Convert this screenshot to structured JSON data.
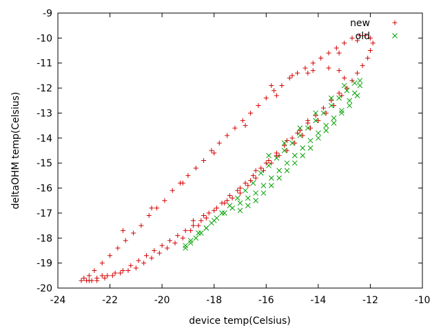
{
  "chart_data": {
    "type": "scatter",
    "title": "",
    "xlabel": "device temp(Celsius)",
    "ylabel": "deltaOHM temp(Celsius)",
    "xlim": [
      -24,
      -10
    ],
    "ylim": [
      -20,
      -9
    ],
    "x_ticks": [
      -24,
      -22,
      -20,
      -18,
      -16,
      -14,
      -12,
      -10
    ],
    "y_ticks": [
      -9,
      -10,
      -11,
      -12,
      -13,
      -14,
      -15,
      -16,
      -17,
      -18,
      -19,
      -20
    ],
    "grid": false,
    "legend_position": "top-right",
    "series": [
      {
        "name": "new",
        "marker": "plus",
        "color": "#d40000",
        "points": [
          [
            -23.1,
            -19.7
          ],
          [
            -22.9,
            -19.7
          ],
          [
            -22.7,
            -19.7
          ],
          [
            -22.5,
            -19.6
          ],
          [
            -22.3,
            -19.5
          ],
          [
            -22.1,
            -19.5
          ],
          [
            -21.8,
            -19.4
          ],
          [
            -21.5,
            -19.3
          ],
          [
            -21.2,
            -19.1
          ],
          [
            -20.9,
            -18.9
          ],
          [
            -20.6,
            -18.7
          ],
          [
            -20.3,
            -18.5
          ],
          [
            -20.0,
            -18.3
          ],
          [
            -19.7,
            -18.1
          ],
          [
            -19.4,
            -17.9
          ],
          [
            -19.1,
            -17.7
          ],
          [
            -18.8,
            -17.5
          ],
          [
            -18.5,
            -17.3
          ],
          [
            -18.2,
            -17.0
          ],
          [
            -17.9,
            -16.8
          ],
          [
            -17.6,
            -16.6
          ],
          [
            -17.3,
            -16.4
          ],
          [
            -17.0,
            -16.2
          ],
          [
            -16.7,
            -15.9
          ],
          [
            -16.4,
            -15.6
          ],
          [
            -16.1,
            -15.3
          ],
          [
            -15.8,
            -15.0
          ],
          [
            -15.5,
            -14.7
          ],
          [
            -15.2,
            -14.5
          ],
          [
            -14.9,
            -14.2
          ],
          [
            -14.6,
            -13.9
          ],
          [
            -14.3,
            -13.6
          ],
          [
            -14.0,
            -13.3
          ],
          [
            -13.7,
            -13.0
          ],
          [
            -13.4,
            -12.7
          ],
          [
            -13.1,
            -12.3
          ],
          [
            -12.9,
            -12.0
          ],
          [
            -12.7,
            -11.7
          ],
          [
            -12.5,
            -11.4
          ],
          [
            -12.3,
            -11.1
          ],
          [
            -12.1,
            -10.8
          ],
          [
            -12.0,
            -10.5
          ],
          [
            -11.9,
            -10.2
          ],
          [
            -12.0,
            -10.0
          ],
          [
            -12.2,
            -9.9
          ],
          [
            -12.4,
            -9.9
          ],
          [
            -12.7,
            -10.0
          ],
          [
            -13.0,
            -10.2
          ],
          [
            -13.3,
            -10.4
          ],
          [
            -13.6,
            -10.6
          ],
          [
            -13.9,
            -10.8
          ],
          [
            -14.2,
            -11.0
          ],
          [
            -14.5,
            -11.2
          ],
          [
            -14.8,
            -11.4
          ],
          [
            -15.1,
            -11.6
          ],
          [
            -15.4,
            -11.9
          ],
          [
            -15.7,
            -12.1
          ],
          [
            -16.0,
            -12.4
          ],
          [
            -16.3,
            -12.7
          ],
          [
            -16.6,
            -13.0
          ],
          [
            -16.9,
            -13.3
          ],
          [
            -17.2,
            -13.6
          ],
          [
            -17.5,
            -13.9
          ],
          [
            -17.8,
            -14.2
          ],
          [
            -18.1,
            -14.5
          ],
          [
            -18.4,
            -14.9
          ],
          [
            -18.7,
            -15.2
          ],
          [
            -19.0,
            -15.5
          ],
          [
            -19.3,
            -15.8
          ],
          [
            -19.6,
            -16.1
          ],
          [
            -19.9,
            -16.5
          ],
          [
            -20.2,
            -16.8
          ],
          [
            -20.5,
            -17.1
          ],
          [
            -20.8,
            -17.5
          ],
          [
            -21.1,
            -17.8
          ],
          [
            -21.4,
            -18.1
          ],
          [
            -21.7,
            -18.4
          ],
          [
            -22.0,
            -18.7
          ],
          [
            -22.3,
            -19.0
          ],
          [
            -22.6,
            -19.3
          ],
          [
            -22.8,
            -19.5
          ],
          [
            -23.0,
            -19.6
          ],
          [
            -21.5,
            -17.7
          ],
          [
            -20.4,
            -16.8
          ],
          [
            -19.2,
            -15.8
          ],
          [
            -18.0,
            -14.6
          ],
          [
            -16.8,
            -13.5
          ],
          [
            -15.6,
            -12.3
          ],
          [
            -14.4,
            -11.4
          ],
          [
            -13.2,
            -10.6
          ],
          [
            -12.5,
            -10.1
          ],
          [
            -15.8,
            -11.9
          ],
          [
            -15.0,
            -11.5
          ],
          [
            -14.2,
            -11.3
          ],
          [
            -13.6,
            -11.2
          ],
          [
            -13.2,
            -11.3
          ],
          [
            -13.0,
            -11.6
          ],
          [
            -13.2,
            -12.2
          ],
          [
            -13.5,
            -12.5
          ],
          [
            -13.8,
            -12.8
          ],
          [
            -14.1,
            -13.1
          ],
          [
            -14.4,
            -13.4
          ],
          [
            -14.7,
            -13.7
          ],
          [
            -15.0,
            -14.0
          ],
          [
            -15.3,
            -14.3
          ],
          [
            -15.6,
            -14.6
          ],
          [
            -15.9,
            -14.9
          ],
          [
            -16.2,
            -15.2
          ],
          [
            -16.5,
            -15.5
          ],
          [
            -16.8,
            -15.8
          ],
          [
            -17.1,
            -16.1
          ],
          [
            -17.4,
            -16.3
          ],
          [
            -17.7,
            -16.6
          ],
          [
            -18.0,
            -16.9
          ],
          [
            -18.3,
            -17.2
          ],
          [
            -18.6,
            -17.5
          ],
          [
            -18.9,
            -17.7
          ],
          [
            -19.2,
            -18.0
          ],
          [
            -19.5,
            -18.2
          ],
          [
            -19.8,
            -18.4
          ],
          [
            -20.1,
            -18.6
          ],
          [
            -20.4,
            -18.8
          ],
          [
            -20.7,
            -19.0
          ],
          [
            -21.0,
            -19.2
          ],
          [
            -21.3,
            -19.3
          ],
          [
            -21.6,
            -19.4
          ],
          [
            -21.9,
            -19.5
          ],
          [
            -22.2,
            -19.6
          ],
          [
            -22.5,
            -19.7
          ],
          [
            -22.8,
            -19.7
          ],
          [
            -16.0,
            -15.0
          ],
          [
            -16.4,
            -15.3
          ],
          [
            -15.6,
            -14.7
          ],
          [
            -15.2,
            -14.1
          ],
          [
            -14.8,
            -13.8
          ],
          [
            -14.4,
            -13.3
          ],
          [
            -17.0,
            -16.0
          ],
          [
            -17.5,
            -16.5
          ],
          [
            -16.6,
            -15.7
          ],
          [
            -18.4,
            -17.1
          ],
          [
            -18.8,
            -17.3
          ]
        ]
      },
      {
        "name": "old",
        "marker": "cross",
        "color": "#00a000",
        "points": [
          [
            -19.1,
            -18.4
          ],
          [
            -18.9,
            -18.2
          ],
          [
            -18.7,
            -18.0
          ],
          [
            -18.5,
            -17.8
          ],
          [
            -18.3,
            -17.6
          ],
          [
            -18.1,
            -17.4
          ],
          [
            -17.9,
            -17.2
          ],
          [
            -17.6,
            -17.0
          ],
          [
            -17.3,
            -16.8
          ],
          [
            -17.0,
            -16.6
          ],
          [
            -16.7,
            -16.4
          ],
          [
            -16.4,
            -16.2
          ],
          [
            -16.1,
            -15.9
          ],
          [
            -15.8,
            -15.6
          ],
          [
            -15.5,
            -15.3
          ],
          [
            -15.2,
            -15.0
          ],
          [
            -14.9,
            -14.7
          ],
          [
            -14.6,
            -14.4
          ],
          [
            -14.3,
            -14.1
          ],
          [
            -14.0,
            -13.8
          ],
          [
            -13.7,
            -13.5
          ],
          [
            -13.4,
            -13.2
          ],
          [
            -13.1,
            -12.9
          ],
          [
            -12.8,
            -12.5
          ],
          [
            -12.6,
            -12.2
          ],
          [
            -12.4,
            -11.9
          ],
          [
            -12.4,
            -11.7
          ],
          [
            -12.6,
            -11.8
          ],
          [
            -12.9,
            -12.1
          ],
          [
            -13.2,
            -12.4
          ],
          [
            -13.5,
            -12.7
          ],
          [
            -13.8,
            -13.0
          ],
          [
            -14.1,
            -13.3
          ],
          [
            -14.4,
            -13.6
          ],
          [
            -14.7,
            -13.9
          ],
          [
            -15.0,
            -14.2
          ],
          [
            -15.3,
            -14.5
          ],
          [
            -15.6,
            -14.8
          ],
          [
            -15.9,
            -15.1
          ],
          [
            -16.2,
            -15.4
          ],
          [
            -16.5,
            -15.8
          ],
          [
            -16.8,
            -16.1
          ],
          [
            -17.1,
            -16.4
          ],
          [
            -17.4,
            -16.7
          ],
          [
            -17.7,
            -17.0
          ],
          [
            -18.0,
            -17.3
          ],
          [
            -18.3,
            -17.6
          ],
          [
            -18.6,
            -17.8
          ],
          [
            -18.9,
            -18.1
          ],
          [
            -19.1,
            -18.3
          ],
          [
            -12.5,
            -12.3
          ],
          [
            -12.8,
            -12.7
          ],
          [
            -13.1,
            -13.0
          ],
          [
            -13.4,
            -13.4
          ],
          [
            -13.7,
            -13.7
          ],
          [
            -14.0,
            -14.0
          ],
          [
            -14.3,
            -14.4
          ],
          [
            -14.6,
            -14.7
          ],
          [
            -14.9,
            -15.0
          ],
          [
            -15.2,
            -15.3
          ],
          [
            -15.5,
            -15.6
          ],
          [
            -15.8,
            -15.9
          ],
          [
            -16.1,
            -16.2
          ],
          [
            -16.4,
            -16.5
          ],
          [
            -16.7,
            -16.7
          ],
          [
            -17.0,
            -16.9
          ],
          [
            -15.9,
            -14.7
          ],
          [
            -15.3,
            -14.2
          ],
          [
            -14.7,
            -13.6
          ],
          [
            -14.1,
            -13.0
          ],
          [
            -13.5,
            -12.4
          ],
          [
            -13.0,
            -11.9
          ]
        ]
      }
    ]
  }
}
